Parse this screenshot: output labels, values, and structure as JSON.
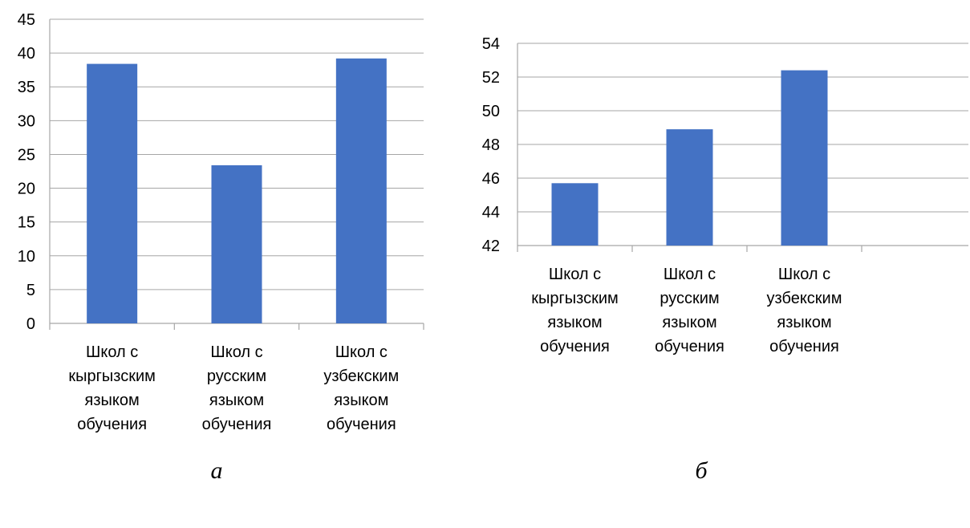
{
  "chart_data": [
    {
      "type": "bar",
      "caption": "а",
      "categories": [
        [
          "Школ с",
          "кыргызским",
          "языком",
          "обучения"
        ],
        [
          "Школ с",
          "русским",
          "языком",
          "обучения"
        ],
        [
          "Школ с",
          "узбекским",
          "языком",
          "обучения"
        ]
      ],
      "values": [
        38.4,
        23.4,
        39.2
      ],
      "ylim": [
        0,
        45
      ],
      "yticks": [
        0,
        5,
        10,
        15,
        20,
        25,
        30,
        35,
        40,
        45
      ],
      "grid": true,
      "bar_color": "#4472c4"
    },
    {
      "type": "bar",
      "caption": "б",
      "categories": [
        [
          "Школ с",
          "кыргызским",
          "языком",
          "обучения"
        ],
        [
          "Школ с",
          "русским",
          "языком",
          "обучения"
        ],
        [
          "Школ с",
          "узбекским",
          "языком",
          "обучения"
        ]
      ],
      "values": [
        45.7,
        48.9,
        52.4
      ],
      "ylim": [
        42,
        54
      ],
      "yticks": [
        42,
        44,
        46,
        48,
        50,
        52,
        54
      ],
      "grid": true,
      "bar_color": "#4472c4"
    }
  ]
}
